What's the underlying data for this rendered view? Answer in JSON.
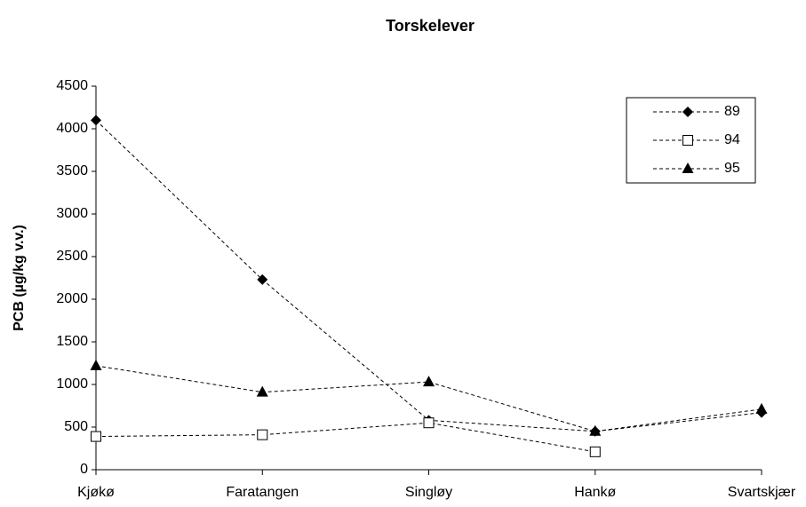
{
  "chart_data": {
    "type": "line",
    "title": "Torskelever",
    "ylabel": "PCB (µg/kg v.v.)",
    "categories": [
      "Kjøkø",
      "Faratangen",
      "Singløy",
      "Hankø",
      "Svartskjær"
    ],
    "series": [
      {
        "name": "89",
        "color": "#000000",
        "marker": "diamond",
        "values": [
          4100,
          2230,
          580,
          450,
          670
        ]
      },
      {
        "name": "94",
        "color": "#000000",
        "marker": "square",
        "values": [
          390,
          410,
          550,
          210,
          null
        ]
      },
      {
        "name": "95",
        "color": "#000000",
        "marker": "triangle",
        "values": [
          1220,
          910,
          1030,
          450,
          710
        ]
      }
    ],
    "ylim": [
      0,
      4500
    ],
    "yticks": [
      0,
      500,
      1000,
      1500,
      2000,
      2500,
      3000,
      3500,
      4000,
      4500
    ],
    "grid": false,
    "legend": "upper right"
  }
}
